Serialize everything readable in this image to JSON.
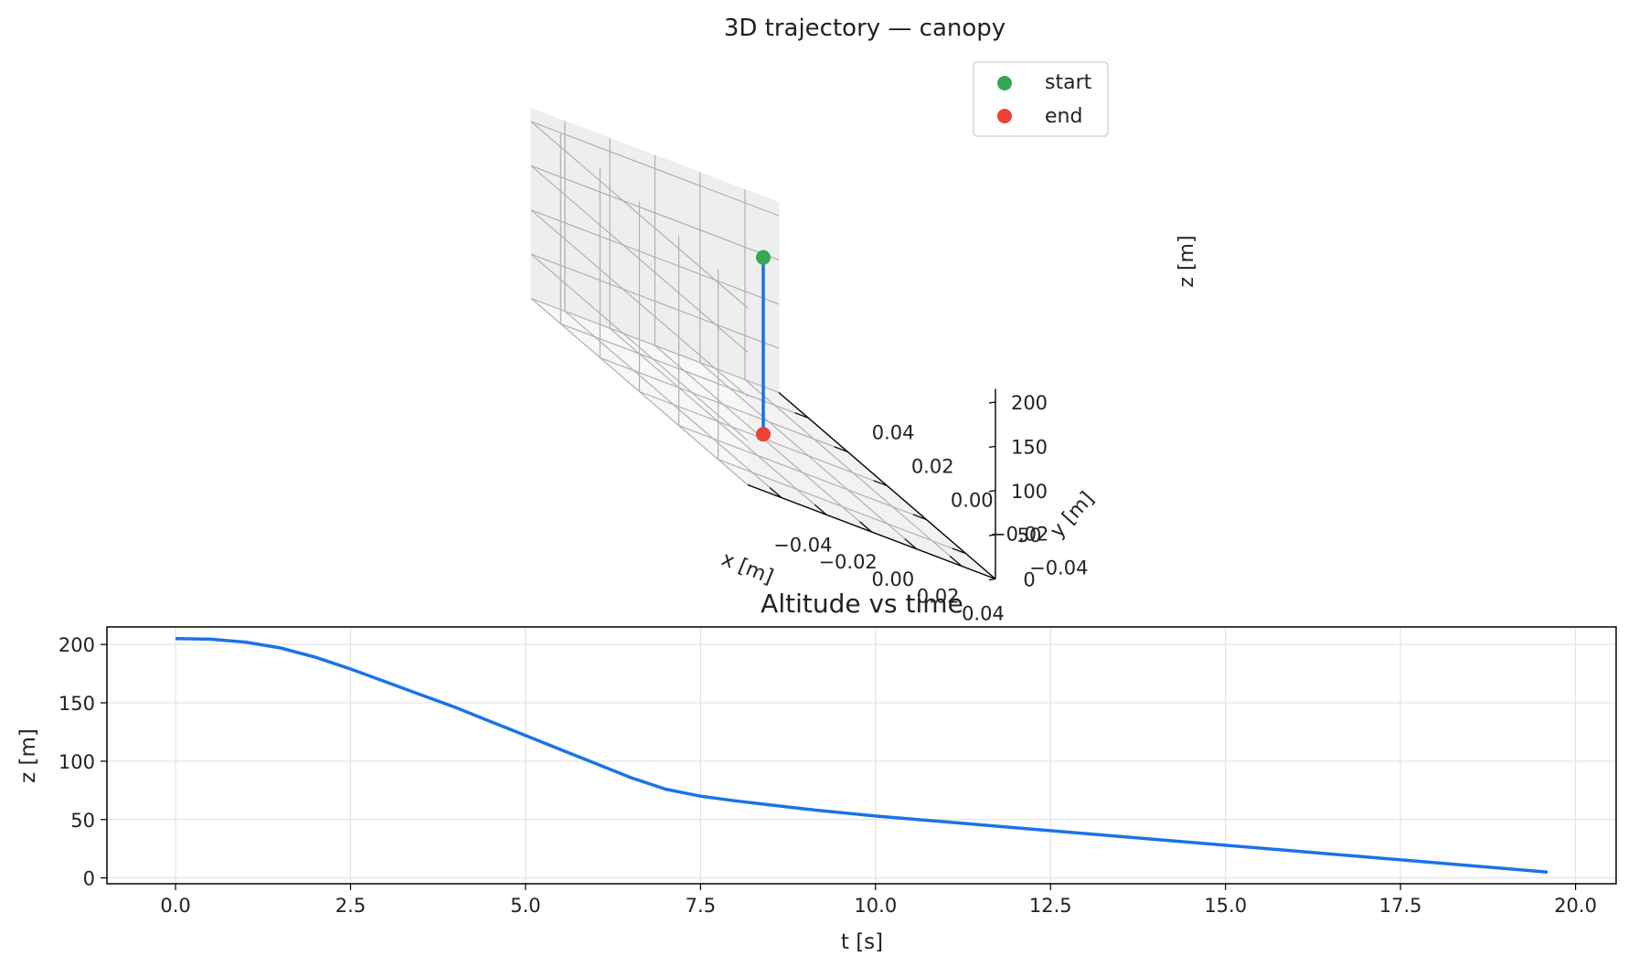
{
  "chart_data": [
    {
      "type": "line",
      "subtype": "3d",
      "title": "3D trajectory — canopy",
      "xlabel": "x [m]",
      "ylabel": "y [m]",
      "zlabel": "z [m]",
      "xlim": [
        -0.055,
        0.055
      ],
      "ylim": [
        -0.055,
        0.055
      ],
      "zlim": [
        0,
        215
      ],
      "x_ticks": [
        -0.04,
        -0.02,
        0.0,
        0.02,
        0.04
      ],
      "x_tick_labels": [
        "−0.04",
        "−0.02",
        "0.00",
        "0.02",
        "0.04"
      ],
      "y_ticks": [
        -0.04,
        -0.02,
        0.0,
        0.02,
        0.04
      ],
      "y_tick_labels": [
        "−0.04",
        "−0.02",
        "0.00",
        "0.02",
        "0.04"
      ],
      "z_ticks": [
        0,
        50,
        100,
        150,
        200
      ],
      "z_tick_labels": [
        "0",
        "50",
        "100",
        "150",
        "200"
      ],
      "grid": true,
      "legend_position": "top-right",
      "series": [
        {
          "type": "line",
          "color": "#1a73e8",
          "points": [
            [
              0.0,
              0.0,
              205
            ],
            [
              0.0,
              0.0,
              5
            ]
          ]
        }
      ],
      "markers": [
        {
          "name": "start",
          "color": "#34a853",
          "point": [
            0.0,
            0.0,
            205
          ]
        },
        {
          "name": "end",
          "color": "#ea4335",
          "point": [
            0.0,
            0.0,
            5
          ]
        }
      ]
    },
    {
      "type": "line",
      "title": "Altitude vs time",
      "xlabel": "t [s]",
      "ylabel": "z [m]",
      "xlim": [
        -0.98,
        20.58
      ],
      "ylim": [
        -5,
        215
      ],
      "x_ticks": [
        0,
        2.5,
        5,
        7.5,
        10,
        12.5,
        15,
        17.5,
        20
      ],
      "x_tick_labels": [
        "0.0",
        "2.5",
        "5.0",
        "7.5",
        "10.0",
        "12.5",
        "15.0",
        "17.5",
        "20.0"
      ],
      "y_ticks": [
        0,
        50,
        100,
        150,
        200
      ],
      "y_tick_labels": [
        "0",
        "50",
        "100",
        "150",
        "200"
      ],
      "grid": true,
      "series": [
        {
          "color": "#1a73e8",
          "x": [
            0,
            0.5,
            1,
            1.5,
            2,
            2.5,
            3,
            3.5,
            4,
            4.5,
            5,
            5.5,
            6,
            6.5,
            6.8,
            7,
            7.5,
            8,
            9,
            10,
            11,
            12,
            13,
            14,
            15,
            16,
            17,
            18,
            19,
            19.6
          ],
          "y": [
            205,
            204.5,
            202,
            197,
            189,
            179,
            168,
            157,
            146,
            134,
            122,
            110,
            98,
            86,
            80,
            76,
            70,
            66,
            59,
            53,
            48,
            43,
            38,
            33,
            28,
            23,
            18,
            13,
            8,
            5
          ]
        }
      ]
    }
  ]
}
